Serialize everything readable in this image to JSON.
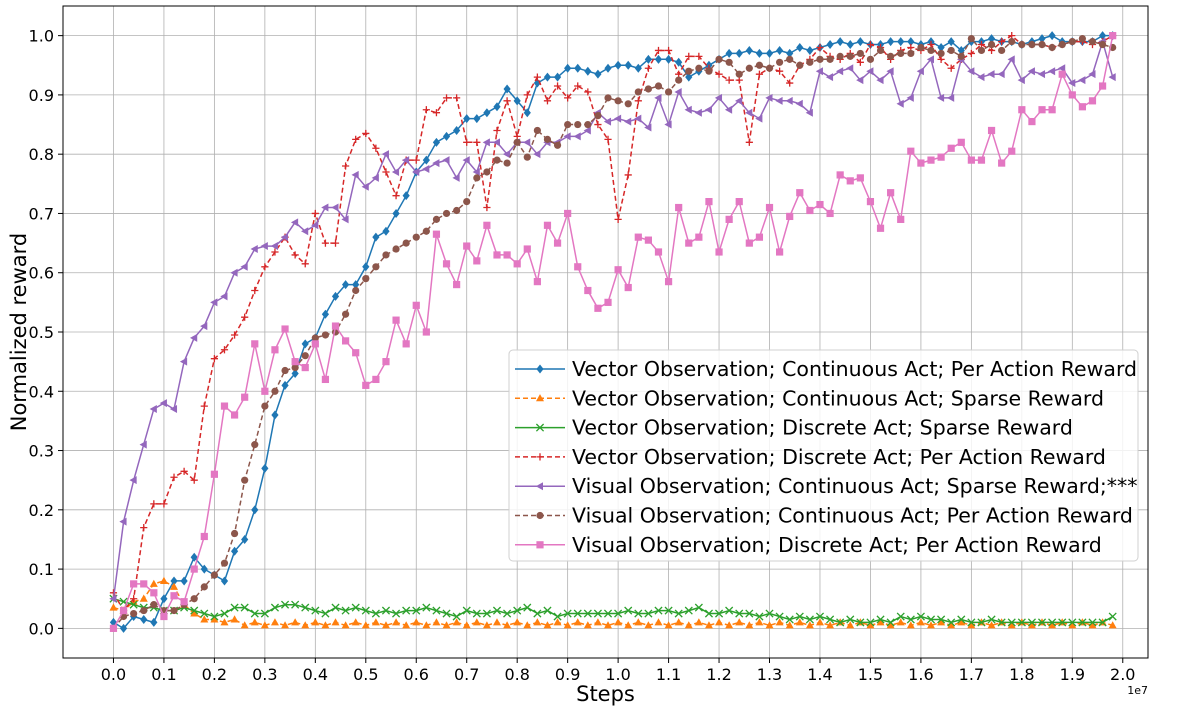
{
  "chart_data": {
    "type": "line",
    "xlabel": "Steps",
    "ylabel": "Normalized reward",
    "x_offset_label": "1e7",
    "xlim": [
      -0.1,
      2.05
    ],
    "ylim": [
      -0.05,
      1.05
    ],
    "xticks": [
      0.0,
      0.1,
      0.2,
      0.3,
      0.4,
      0.5,
      0.6,
      0.7,
      0.8,
      0.9,
      1.0,
      1.1,
      1.2,
      1.3,
      1.4,
      1.5,
      1.6,
      1.7,
      1.8,
      1.9,
      2.0
    ],
    "yticks": [
      0.0,
      0.1,
      0.2,
      0.3,
      0.4,
      0.5,
      0.6,
      0.7,
      0.8,
      0.9,
      1.0
    ],
    "grid": true,
    "legend_position": "center-right",
    "x_start": 0.0,
    "x_step": 0.02,
    "series": [
      {
        "name": "Vector Observation; Continuous Act; Per Action Reward",
        "color": "#1f77b4",
        "marker": "diamond",
        "dashed": false,
        "values": [
          0.01,
          0.0,
          0.02,
          0.015,
          0.01,
          0.05,
          0.08,
          0.08,
          0.12,
          0.1,
          0.09,
          0.08,
          0.13,
          0.15,
          0.2,
          0.27,
          0.36,
          0.41,
          0.43,
          0.48,
          0.49,
          0.53,
          0.56,
          0.58,
          0.58,
          0.61,
          0.66,
          0.67,
          0.7,
          0.73,
          0.77,
          0.79,
          0.82,
          0.83,
          0.84,
          0.86,
          0.86,
          0.87,
          0.88,
          0.91,
          0.89,
          0.87,
          0.92,
          0.93,
          0.93,
          0.945,
          0.945,
          0.94,
          0.935,
          0.945,
          0.95,
          0.95,
          0.945,
          0.96,
          0.96,
          0.96,
          0.955,
          0.93,
          0.94,
          0.95,
          0.96,
          0.97,
          0.97,
          0.975,
          0.97,
          0.97,
          0.975,
          0.97,
          0.98,
          0.975,
          0.98,
          0.985,
          0.99,
          0.985,
          0.99,
          0.985,
          0.985,
          0.99,
          0.99,
          0.99,
          0.985,
          0.99,
          0.98,
          0.99,
          0.975,
          0.99,
          0.99,
          0.995,
          0.99,
          0.99,
          0.985,
          0.99,
          0.995,
          1.0,
          0.99,
          0.99,
          0.99,
          0.99,
          1.0,
          1.0
        ]
      },
      {
        "name": "Vector Observation; Continuous Act; Sparse Reward",
        "color": "#ff7f0e",
        "marker": "triangle",
        "dashed": true,
        "values": [
          0.035,
          0.03,
          0.045,
          0.05,
          0.075,
          0.08,
          0.07,
          0.04,
          0.025,
          0.015,
          0.015,
          0.01,
          0.015,
          0.005,
          0.01,
          0.005,
          0.01,
          0.005,
          0.01,
          0.005,
          0.01,
          0.005,
          0.01,
          0.005,
          0.01,
          0.005,
          0.01,
          0.005,
          0.01,
          0.005,
          0.01,
          0.005,
          0.01,
          0.005,
          0.01,
          0.005,
          0.01,
          0.005,
          0.01,
          0.005,
          0.01,
          0.005,
          0.01,
          0.005,
          0.01,
          0.005,
          0.01,
          0.005,
          0.01,
          0.005,
          0.01,
          0.005,
          0.01,
          0.005,
          0.01,
          0.005,
          0.01,
          0.005,
          0.01,
          0.005,
          0.01,
          0.005,
          0.01,
          0.005,
          0.01,
          0.005,
          0.01,
          0.005,
          0.01,
          0.005,
          0.01,
          0.005,
          0.01,
          0.005,
          0.01,
          0.005,
          0.01,
          0.005,
          0.01,
          0.005,
          0.01,
          0.005,
          0.01,
          0.005,
          0.01,
          0.005,
          0.01,
          0.005,
          0.01,
          0.005,
          0.01,
          0.005,
          0.01,
          0.005,
          0.01,
          0.005,
          0.01,
          0.005,
          0.01,
          0.005
        ]
      },
      {
        "name": "Vector Observation; Discrete Act; Sparse Reward",
        "color": "#2ca02c",
        "marker": "x",
        "dashed": false,
        "values": [
          0.05,
          0.045,
          0.04,
          0.035,
          0.035,
          0.03,
          0.03,
          0.035,
          0.03,
          0.025,
          0.02,
          0.025,
          0.035,
          0.035,
          0.025,
          0.025,
          0.035,
          0.04,
          0.04,
          0.035,
          0.03,
          0.025,
          0.035,
          0.03,
          0.035,
          0.03,
          0.025,
          0.03,
          0.025,
          0.03,
          0.03,
          0.035,
          0.03,
          0.025,
          0.02,
          0.03,
          0.025,
          0.025,
          0.03,
          0.025,
          0.03,
          0.035,
          0.025,
          0.03,
          0.02,
          0.025,
          0.025,
          0.025,
          0.025,
          0.025,
          0.025,
          0.03,
          0.025,
          0.025,
          0.03,
          0.03,
          0.025,
          0.03,
          0.035,
          0.025,
          0.025,
          0.03,
          0.025,
          0.025,
          0.02,
          0.025,
          0.02,
          0.015,
          0.02,
          0.015,
          0.02,
          0.015,
          0.01,
          0.015,
          0.01,
          0.01,
          0.015,
          0.01,
          0.02,
          0.015,
          0.02,
          0.015,
          0.015,
          0.01,
          0.015,
          0.01,
          0.01,
          0.015,
          0.01,
          0.01,
          0.01,
          0.01,
          0.01,
          0.01,
          0.01,
          0.01,
          0.01,
          0.01,
          0.01,
          0.02
        ]
      },
      {
        "name": "Vector Observation; Discrete Act; Per Action Reward",
        "color": "#d62728",
        "marker": "plus",
        "dashed": true,
        "values": [
          0.06,
          0.03,
          0.05,
          0.17,
          0.21,
          0.21,
          0.255,
          0.265,
          0.25,
          0.375,
          0.455,
          0.47,
          0.495,
          0.525,
          0.57,
          0.61,
          0.635,
          0.66,
          0.63,
          0.615,
          0.7,
          0.65,
          0.65,
          0.78,
          0.825,
          0.835,
          0.81,
          0.77,
          0.73,
          0.79,
          0.79,
          0.875,
          0.87,
          0.895,
          0.895,
          0.82,
          0.82,
          0.71,
          0.84,
          0.89,
          0.83,
          0.9,
          0.93,
          0.89,
          0.915,
          0.895,
          0.915,
          0.905,
          0.85,
          0.825,
          0.69,
          0.765,
          0.89,
          0.945,
          0.975,
          0.975,
          0.935,
          0.965,
          0.965,
          0.945,
          0.935,
          0.925,
          0.925,
          0.82,
          0.935,
          0.945,
          0.94,
          0.92,
          0.95,
          0.96,
          0.98,
          0.965,
          0.96,
          0.97,
          0.955,
          0.985,
          0.98,
          0.96,
          0.975,
          0.98,
          0.975,
          0.985,
          0.96,
          0.945,
          0.96,
          0.97,
          0.985,
          0.975,
          0.99,
          1.0,
          0.985,
          0.985,
          0.985,
          0.98,
          0.985,
          0.99,
          0.99,
          0.985,
          0.99,
          1.0
        ]
      },
      {
        "name": "Visual Observation; Continuous Act; Sparse Reward;***",
        "color": "#9467bd",
        "marker": "triangle-left",
        "dashed": false,
        "values": [
          0.05,
          0.18,
          0.25,
          0.31,
          0.37,
          0.38,
          0.37,
          0.45,
          0.49,
          0.51,
          0.55,
          0.56,
          0.6,
          0.61,
          0.64,
          0.645,
          0.645,
          0.66,
          0.685,
          0.67,
          0.68,
          0.71,
          0.71,
          0.69,
          0.765,
          0.745,
          0.76,
          0.8,
          0.77,
          0.79,
          0.77,
          0.775,
          0.785,
          0.79,
          0.76,
          0.79,
          0.77,
          0.82,
          0.82,
          0.8,
          0.82,
          0.82,
          0.8,
          0.82,
          0.82,
          0.83,
          0.83,
          0.84,
          0.87,
          0.855,
          0.86,
          0.855,
          0.86,
          0.845,
          0.895,
          0.85,
          0.905,
          0.875,
          0.87,
          0.875,
          0.895,
          0.875,
          0.89,
          0.87,
          0.86,
          0.895,
          0.89,
          0.89,
          0.885,
          0.87,
          0.94,
          0.93,
          0.94,
          0.945,
          0.925,
          0.94,
          0.925,
          0.94,
          0.885,
          0.895,
          0.94,
          0.96,
          0.895,
          0.895,
          0.96,
          0.94,
          0.93,
          0.935,
          0.935,
          0.96,
          0.925,
          0.94,
          0.935,
          0.94,
          0.945,
          0.92,
          0.925,
          0.935,
          0.99,
          0.93
        ]
      },
      {
        "name": "Visual Observation; Continuous Act; Per Action Reward",
        "color": "#8c564b",
        "marker": "circle",
        "dashed": true,
        "values": [
          0.0,
          0.02,
          0.025,
          0.03,
          0.04,
          0.03,
          0.03,
          0.04,
          0.05,
          0.07,
          0.09,
          0.11,
          0.16,
          0.25,
          0.31,
          0.375,
          0.4,
          0.435,
          0.44,
          0.46,
          0.49,
          0.495,
          0.5,
          0.53,
          0.57,
          0.59,
          0.61,
          0.63,
          0.64,
          0.65,
          0.66,
          0.67,
          0.69,
          0.7,
          0.705,
          0.72,
          0.76,
          0.77,
          0.79,
          0.785,
          0.82,
          0.795,
          0.84,
          0.825,
          0.815,
          0.85,
          0.85,
          0.85,
          0.865,
          0.895,
          0.89,
          0.885,
          0.905,
          0.91,
          0.915,
          0.905,
          0.925,
          0.94,
          0.945,
          0.94,
          0.96,
          0.955,
          0.935,
          0.945,
          0.95,
          0.945,
          0.955,
          0.96,
          0.95,
          0.955,
          0.96,
          0.96,
          0.965,
          0.965,
          0.97,
          0.96,
          0.975,
          0.965,
          0.97,
          0.97,
          0.98,
          0.975,
          0.97,
          0.975,
          0.965,
          0.995,
          0.975,
          0.985,
          0.975,
          0.99,
          0.985,
          0.985,
          0.985,
          0.98,
          0.985,
          0.99,
          0.995,
          0.99,
          0.985,
          0.98
        ]
      },
      {
        "name": "Visual Observation; Discrete Act; Per Action Reward",
        "color": "#e377c2",
        "marker": "square",
        "dashed": false,
        "values": [
          0.0,
          0.03,
          0.075,
          0.075,
          0.06,
          0.02,
          0.055,
          0.045,
          0.1,
          0.155,
          0.26,
          0.375,
          0.36,
          0.39,
          0.48,
          0.4,
          0.47,
          0.505,
          0.45,
          0.44,
          0.48,
          0.42,
          0.51,
          0.485,
          0.465,
          0.41,
          0.42,
          0.45,
          0.52,
          0.48,
          0.545,
          0.5,
          0.665,
          0.615,
          0.58,
          0.645,
          0.62,
          0.68,
          0.63,
          0.63,
          0.615,
          0.64,
          0.585,
          0.68,
          0.65,
          0.7,
          0.61,
          0.57,
          0.54,
          0.55,
          0.605,
          0.575,
          0.66,
          0.655,
          0.635,
          0.585,
          0.71,
          0.65,
          0.66,
          0.72,
          0.635,
          0.69,
          0.72,
          0.65,
          0.66,
          0.71,
          0.635,
          0.695,
          0.735,
          0.705,
          0.715,
          0.7,
          0.765,
          0.755,
          0.76,
          0.72,
          0.675,
          0.735,
          0.69,
          0.805,
          0.785,
          0.79,
          0.795,
          0.81,
          0.82,
          0.79,
          0.79,
          0.84,
          0.785,
          0.805,
          0.875,
          0.855,
          0.875,
          0.875,
          0.935,
          0.9,
          0.88,
          0.89,
          0.915,
          1.0
        ]
      }
    ]
  }
}
